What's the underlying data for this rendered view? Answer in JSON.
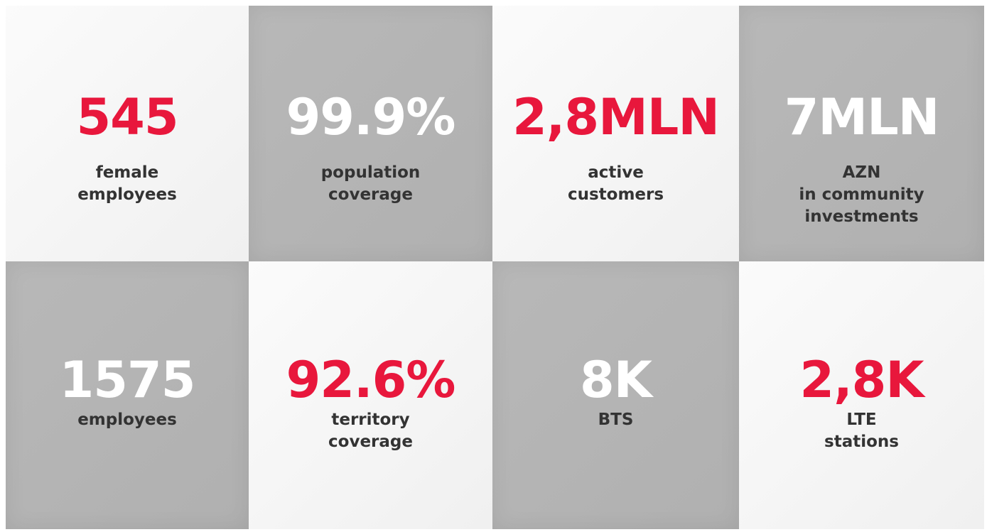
{
  "tiles": [
    {
      "value": "545",
      "label": [
        "female",
        "employees"
      ]
    },
    {
      "value": "99.9%",
      "label": [
        "population",
        "coverage"
      ]
    },
    {
      "value": "2,8MLN",
      "label": [
        "active",
        "customers"
      ]
    },
    {
      "value": "7MLN",
      "label": [
        "AZN",
        "in community",
        "investments"
      ]
    },
    {
      "value": "1575",
      "label": [
        "employees"
      ]
    },
    {
      "value": "92.6%",
      "label": [
        "territory",
        "coverage"
      ]
    },
    {
      "value": "8K",
      "label": [
        "BTS"
      ]
    },
    {
      "value": "2,8K",
      "label": [
        "LTE",
        "stations"
      ]
    }
  ]
}
